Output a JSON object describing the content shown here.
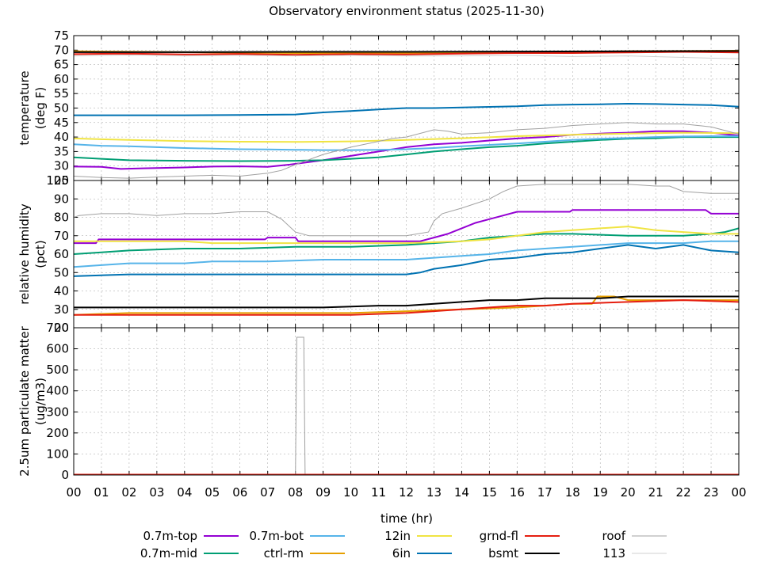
{
  "title": "Observatory environment status (2025-11-30)",
  "colors": {
    "0.7m-top": "#9400d3",
    "0.7m-mid": "#009e73",
    "0.7m-bot": "#56b4e9",
    "ctrl-rm": "#e69f00",
    "12in": "#f0e442",
    "6in": "#0072b2",
    "grnd-fl": "#e51e10",
    "bsmt": "#000000",
    "roof": "#a0a0a0",
    "113": "#d0d0d0"
  },
  "chart_data": [
    {
      "type": "line",
      "id": "temperature",
      "ylabel": [
        "temperature",
        "(deg F)"
      ],
      "ylim": [
        25,
        75
      ],
      "yticks": [
        25,
        30,
        35,
        40,
        45,
        50,
        55,
        60,
        65,
        70,
        75
      ],
      "xlim": [
        0,
        24
      ],
      "grid": true,
      "series": [
        {
          "name": "0.7m-top",
          "x": [
            0,
            1,
            1.7,
            2.5,
            4,
            5,
            6,
            7,
            7.8,
            9,
            10,
            11,
            12,
            13,
            14,
            15,
            16,
            17,
            18,
            19,
            20,
            21,
            22,
            23,
            24
          ],
          "y": [
            29.8,
            29.7,
            29.0,
            29.2,
            29.5,
            29.8,
            29.9,
            29.7,
            30.5,
            32.0,
            33.5,
            35.0,
            36.5,
            37.5,
            38.0,
            38.8,
            39.5,
            40.0,
            40.8,
            41.2,
            41.5,
            42.0,
            42.0,
            41.5,
            40.5
          ]
        },
        {
          "name": "0.7m-mid",
          "x": [
            0,
            1,
            2,
            4,
            6,
            8,
            9,
            10,
            11,
            12,
            13,
            14,
            15,
            16,
            17,
            18,
            19,
            20,
            21,
            22,
            23,
            24
          ],
          "y": [
            33.0,
            32.5,
            32.0,
            31.8,
            31.7,
            31.8,
            32.0,
            32.5,
            33.0,
            34.0,
            35.0,
            35.8,
            36.5,
            37.0,
            37.8,
            38.4,
            39.0,
            39.4,
            39.6,
            40.0,
            40.0,
            40.0
          ]
        },
        {
          "name": "0.7m-bot",
          "x": [
            0,
            1,
            2,
            3,
            4,
            5,
            6,
            7,
            8,
            9,
            10,
            11,
            12,
            13,
            14,
            15,
            16,
            17,
            18,
            19,
            20,
            21,
            22,
            23,
            24
          ],
          "y": [
            37.5,
            37.0,
            36.8,
            36.5,
            36.2,
            36.0,
            35.8,
            35.7,
            35.6,
            35.5,
            35.5,
            35.6,
            35.8,
            36.2,
            36.8,
            37.3,
            37.8,
            38.4,
            39.0,
            39.4,
            39.7,
            40.0,
            40.2,
            40.3,
            40.3
          ]
        },
        {
          "name": "12in",
          "x": [
            0,
            2,
            4,
            6,
            8,
            10,
            12,
            14,
            16,
            18,
            20,
            22,
            24
          ],
          "y": [
            39.5,
            39.0,
            38.6,
            38.4,
            38.3,
            38.5,
            39.0,
            39.6,
            40.3,
            40.8,
            41.2,
            41.5,
            41.3
          ]
        },
        {
          "name": "6in",
          "x": [
            0,
            2,
            4,
            6,
            8,
            9,
            10,
            11,
            12,
            13,
            14,
            15,
            16,
            17,
            18,
            19,
            20,
            21,
            22,
            23,
            24
          ],
          "y": [
            47.5,
            47.5,
            47.5,
            47.6,
            47.8,
            48.5,
            49.0,
            49.5,
            50.0,
            50.0,
            50.2,
            50.4,
            50.6,
            51.0,
            51.2,
            51.3,
            51.5,
            51.4,
            51.2,
            51.0,
            50.5
          ]
        },
        {
          "name": "ctrl-rm",
          "x": [
            0,
            4,
            8,
            12,
            16,
            20,
            24
          ],
          "y": [
            69.6,
            69.3,
            69.0,
            69.0,
            69.2,
            69.6,
            69.8
          ]
        },
        {
          "name": "grnd-fl",
          "x": [
            0,
            2,
            4,
            6,
            8,
            10,
            12,
            14,
            16,
            18,
            20,
            22,
            24
          ],
          "y": [
            68.6,
            68.8,
            68.5,
            68.7,
            68.4,
            68.6,
            68.5,
            68.8,
            69.0,
            69.0,
            69.2,
            69.4,
            69.2
          ]
        },
        {
          "name": "bsmt",
          "x": [
            0,
            4,
            8,
            12,
            16,
            20,
            24
          ],
          "y": [
            69.3,
            69.3,
            69.4,
            69.4,
            69.5,
            69.6,
            69.7
          ]
        },
        {
          "name": "roof",
          "x": [
            0,
            1,
            2,
            3,
            4,
            5,
            6,
            7,
            7.5,
            8,
            9,
            10,
            11,
            11.5,
            12,
            13,
            13.5,
            14,
            15,
            16,
            17,
            18,
            19,
            20,
            21,
            22,
            23,
            24
          ],
          "y": [
            26.5,
            26.0,
            25.8,
            26.2,
            26.5,
            26.8,
            26.5,
            27.5,
            28.5,
            30.5,
            34.0,
            36.5,
            38.5,
            39.5,
            40.0,
            42.5,
            42.0,
            41.0,
            41.5,
            42.5,
            43.0,
            44.0,
            44.5,
            45.0,
            44.5,
            44.5,
            43.5,
            41.0
          ]
        },
        {
          "name": "113",
          "x": [
            0,
            2,
            4,
            6,
            8,
            10,
            12,
            14,
            16,
            18,
            20,
            22,
            24
          ],
          "y": [
            68.0,
            68.3,
            68.0,
            68.2,
            68.0,
            68.2,
            68.0,
            68.0,
            68.2,
            67.8,
            68.0,
            67.5,
            67.0
          ]
        }
      ]
    },
    {
      "type": "line",
      "id": "humidity",
      "ylabel": [
        "relative humidity",
        "(pct)"
      ],
      "ylim": [
        20,
        100
      ],
      "yticks": [
        20,
        30,
        40,
        50,
        60,
        70,
        80,
        90,
        100
      ],
      "xlim": [
        0,
        24
      ],
      "grid": true,
      "series": [
        {
          "name": "0.7m-top",
          "x": [
            0,
            0.8,
            0.9,
            6.9,
            7,
            8,
            8.1,
            12.5,
            13,
            13.5,
            14,
            14.5,
            15,
            15.5,
            16,
            17,
            17.9,
            18,
            21.5,
            22.8,
            23,
            24
          ],
          "y": [
            66,
            66,
            68,
            68,
            69,
            69,
            67,
            67,
            69,
            71,
            74,
            77,
            79,
            81,
            83,
            83,
            83,
            84,
            84,
            84,
            82,
            82
          ]
        },
        {
          "name": "0.7m-mid",
          "x": [
            0,
            1,
            2,
            4,
            6,
            8,
            10,
            12,
            13,
            14,
            15,
            16,
            17,
            18,
            20,
            22,
            23,
            23.5,
            24
          ],
          "y": [
            60,
            61,
            62,
            63,
            63,
            64,
            64,
            65,
            66,
            67,
            69,
            70,
            71,
            71,
            70,
            70,
            71,
            72,
            74
          ]
        },
        {
          "name": "0.7m-bot",
          "x": [
            0,
            1,
            2,
            4,
            5,
            7,
            9,
            12,
            13,
            14,
            15,
            16,
            17,
            18,
            20,
            22,
            23,
            24
          ],
          "y": [
            53,
            54,
            55,
            55,
            56,
            56,
            57,
            57,
            58,
            59,
            60,
            62,
            63,
            64,
            66,
            66,
            67,
            67
          ]
        },
        {
          "name": "ctrl-rm",
          "x": [
            0,
            2,
            4,
            6,
            8,
            10,
            12,
            14,
            16,
            17,
            18,
            18.7,
            18.9,
            19.5,
            20,
            21,
            22,
            24
          ],
          "y": [
            27,
            28,
            28,
            28,
            28,
            28,
            29,
            30,
            31,
            32,
            33,
            33,
            37,
            37,
            35,
            35,
            35,
            35
          ]
        },
        {
          "name": "12in",
          "x": [
            0,
            1,
            4,
            5,
            6,
            8,
            10,
            12,
            14,
            15,
            16,
            17,
            18,
            19,
            20,
            21,
            22,
            23,
            24
          ],
          "y": [
            67,
            67,
            67,
            66,
            66,
            66,
            66,
            66,
            67,
            68,
            70,
            72,
            73,
            74,
            75,
            73,
            72,
            71,
            71
          ]
        },
        {
          "name": "6in",
          "x": [
            0,
            2,
            4,
            6,
            8,
            10,
            12,
            12.5,
            13,
            14,
            15,
            16,
            17,
            18,
            19,
            20,
            21,
            22,
            23,
            24
          ],
          "y": [
            48,
            49,
            49,
            49,
            49,
            49,
            49,
            50,
            52,
            54,
            57,
            58,
            60,
            61,
            63,
            65,
            63,
            65,
            62,
            61
          ]
        },
        {
          "name": "grnd-fl",
          "x": [
            0,
            2,
            4,
            6,
            8,
            10,
            12,
            13,
            14,
            15,
            16,
            17,
            18,
            20,
            22,
            24
          ],
          "y": [
            27,
            27,
            27,
            27,
            27,
            27,
            28,
            29,
            30,
            31,
            32,
            32,
            33,
            34,
            35,
            34
          ]
        },
        {
          "name": "bsmt",
          "x": [
            0,
            3,
            6,
            9,
            11,
            12,
            13,
            14,
            15,
            16,
            17,
            18,
            19,
            20,
            22,
            24
          ],
          "y": [
            31,
            31,
            31,
            31,
            32,
            32,
            33,
            34,
            35,
            35,
            36,
            36,
            36,
            37,
            37,
            37
          ]
        },
        {
          "name": "roof",
          "x": [
            0,
            0.2,
            1,
            2,
            3,
            4,
            5,
            6,
            7,
            7.5,
            8,
            8.5,
            9,
            10,
            11,
            12,
            12.8,
            13,
            13.3,
            14,
            15,
            15.5,
            16,
            17,
            18,
            19,
            20,
            21,
            21.5,
            22,
            23,
            24
          ],
          "y": [
            80,
            81,
            82,
            82,
            81,
            82,
            82,
            83,
            83,
            79,
            72,
            70,
            70,
            70,
            70,
            70,
            72,
            78,
            82,
            85,
            90,
            94,
            97,
            98,
            98,
            98,
            98,
            97,
            97,
            94,
            93,
            93
          ]
        },
        {
          "name": "113",
          "x": [
            0,
            24
          ],
          "y": [
            null,
            null
          ]
        }
      ]
    },
    {
      "type": "line",
      "id": "pm25",
      "ylabel": [
        "2.5um particulate matter",
        "(ug/m3)"
      ],
      "ylim": [
        0,
        700
      ],
      "yticks": [
        0,
        100,
        200,
        300,
        400,
        500,
        600,
        700
      ],
      "xlim": [
        0,
        24
      ],
      "xlabel": "time (hr)",
      "xticklabels": [
        "00",
        "01",
        "02",
        "03",
        "04",
        "05",
        "06",
        "07",
        "08",
        "09",
        "10",
        "11",
        "12",
        "13",
        "14",
        "15",
        "16",
        "17",
        "18",
        "19",
        "20",
        "21",
        "22",
        "23",
        "00"
      ],
      "grid": true,
      "series": [
        {
          "name": "roof",
          "x": [
            0,
            8.0,
            8.05,
            8.3,
            8.35,
            24
          ],
          "y": [
            0,
            0,
            655,
            655,
            0,
            0
          ]
        },
        {
          "name": "grnd-fl",
          "x": [
            0,
            24
          ],
          "y": [
            2,
            2
          ]
        }
      ]
    }
  ],
  "legend": {
    "placement": "bottom",
    "entries": [
      "0.7m-top",
      "0.7m-bot",
      "12in",
      "grnd-fl",
      "roof",
      "0.7m-mid",
      "ctrl-rm",
      "6in",
      "bsmt",
      "113"
    ]
  }
}
